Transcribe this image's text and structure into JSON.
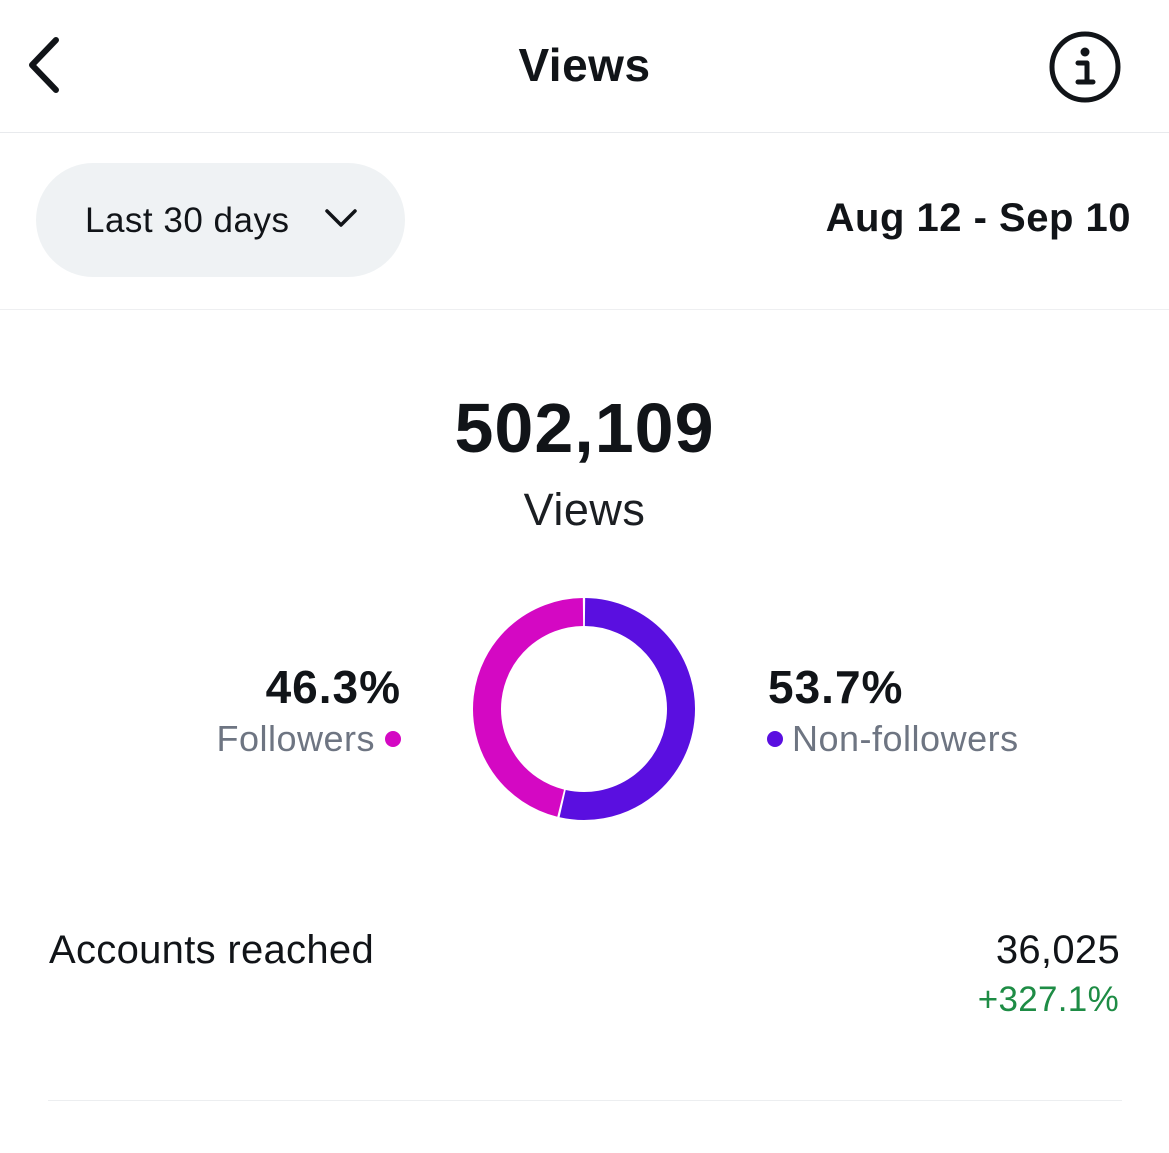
{
  "header": {
    "title": "Views",
    "back_icon": "chevron-left-icon",
    "info_icon": "info-icon"
  },
  "filter": {
    "range_label": "Last 30 days",
    "chevron_icon": "chevron-down-icon",
    "date_range": "Aug 12 - Sep 10"
  },
  "summary": {
    "total_views": "502,109",
    "total_label": "Views"
  },
  "breakdown": {
    "followers_pct": "46.3%",
    "followers_label": "Followers",
    "nonfollowers_pct": "53.7%",
    "nonfollowers_label": "Non-followers"
  },
  "chart_data": {
    "type": "pie",
    "categories": [
      "Followers",
      "Non-followers"
    ],
    "values": [
      46.3,
      53.7
    ],
    "colors": [
      "#d408c3",
      "#5a0fe0"
    ],
    "style": "donut"
  },
  "accounts_reached": {
    "label": "Accounts reached",
    "value": "36,025",
    "change": "+327.1%",
    "change_color": "#1e8c45"
  }
}
